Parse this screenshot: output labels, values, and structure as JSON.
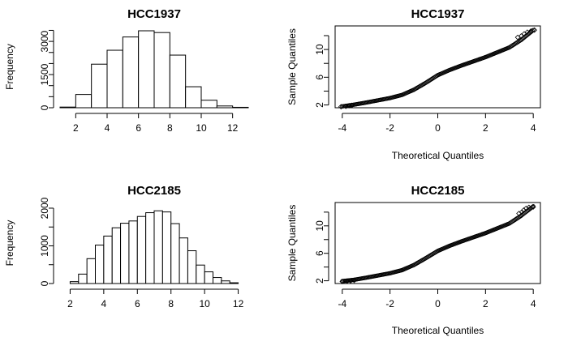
{
  "figure": {
    "background": "#ffffff",
    "ink": "#000000"
  },
  "chart_data": [
    {
      "type": "bar",
      "subtype": "histogram",
      "title": "HCC1937",
      "xlabel": "",
      "ylabel": "Frequency",
      "bin_width": 1,
      "bin_start": 1,
      "values": [
        30,
        600,
        1970,
        2600,
        3200,
        3480,
        3400,
        2380,
        950,
        340,
        80,
        20
      ],
      "xlim": [
        1,
        13
      ],
      "ylim": [
        0,
        3700
      ],
      "xticks": [
        2,
        4,
        6,
        8,
        10,
        12
      ],
      "yticks": [
        0,
        1500,
        3000
      ],
      "yminor": [
        500,
        1000,
        2000,
        2500,
        3500
      ],
      "grid": false
    },
    {
      "type": "scatter",
      "subtype": "qq",
      "title": "HCC1937",
      "xlabel": "Theoretical Quantiles",
      "ylabel": "Sample Quantiles",
      "xlim": [
        -4.3,
        4.3
      ],
      "ylim": [
        1.6,
        13.4
      ],
      "xticks": [
        -4,
        -2,
        0,
        2,
        4
      ],
      "yticks": [
        2,
        6,
        10
      ],
      "yminor": [
        4,
        8,
        12
      ],
      "curve": [
        [
          -4,
          1.8
        ],
        [
          -3.5,
          2.05
        ],
        [
          -3,
          2.35
        ],
        [
          -2,
          3.0
        ],
        [
          -1.5,
          3.45
        ],
        [
          -1,
          4.2
        ],
        [
          -0.5,
          5.2
        ],
        [
          0,
          6.3
        ],
        [
          0.5,
          7.05
        ],
        [
          1,
          7.7
        ],
        [
          2,
          8.9
        ],
        [
          3,
          10.3
        ],
        [
          3.5,
          11.4
        ],
        [
          4,
          12.8
        ]
      ],
      "tail_points": [
        [
          -4.05,
          1.75
        ],
        [
          -3.85,
          1.8
        ],
        [
          -3.7,
          1.9
        ],
        [
          -3.6,
          1.95
        ],
        [
          3.35,
          11.75
        ],
        [
          3.5,
          11.95
        ],
        [
          3.62,
          12.25
        ],
        [
          3.75,
          12.5
        ],
        [
          3.9,
          12.65
        ],
        [
          4.05,
          12.8
        ]
      ],
      "grid": false
    },
    {
      "type": "bar",
      "subtype": "histogram",
      "title": "HCC2185",
      "xlabel": "",
      "ylabel": "Frequency",
      "bin_width": 0.5,
      "bin_start": 2,
      "values": [
        50,
        250,
        660,
        1020,
        1260,
        1480,
        1600,
        1660,
        1780,
        1880,
        1930,
        1900,
        1590,
        1210,
        870,
        490,
        310,
        160,
        70,
        20
      ],
      "xlim": [
        1.4,
        12.6
      ],
      "ylim": [
        0,
        2150
      ],
      "xticks": [
        2,
        4,
        6,
        8,
        10,
        12
      ],
      "yticks": [
        0,
        1000,
        2000
      ],
      "yminor": [
        500,
        1500
      ],
      "grid": false
    },
    {
      "type": "scatter",
      "subtype": "qq",
      "title": "HCC2185",
      "xlabel": "Theoretical Quantiles",
      "ylabel": "Sample Quantiles",
      "xlim": [
        -4.3,
        4.3
      ],
      "ylim": [
        1.6,
        13.4
      ],
      "xticks": [
        -4,
        -2,
        0,
        2,
        4
      ],
      "yticks": [
        2,
        6,
        10
      ],
      "yminor": [
        4,
        8,
        12
      ],
      "curve": [
        [
          -4,
          1.95
        ],
        [
          -3.5,
          2.15
        ],
        [
          -3,
          2.45
        ],
        [
          -2,
          3.1
        ],
        [
          -1.5,
          3.55
        ],
        [
          -1,
          4.3
        ],
        [
          -0.5,
          5.3
        ],
        [
          0,
          6.35
        ],
        [
          0.5,
          7.1
        ],
        [
          1,
          7.75
        ],
        [
          2,
          8.95
        ],
        [
          3,
          10.35
        ],
        [
          3.5,
          11.5
        ],
        [
          4,
          12.85
        ]
      ],
      "tail_points": [
        [
          -4.0,
          1.9
        ],
        [
          -3.8,
          1.95
        ],
        [
          -3.65,
          2.0
        ],
        [
          -3.5,
          2.05
        ],
        [
          3.4,
          11.8
        ],
        [
          3.52,
          12.0
        ],
        [
          3.6,
          12.3
        ],
        [
          3.7,
          12.55
        ],
        [
          3.82,
          12.7
        ],
        [
          4.0,
          12.75
        ]
      ],
      "grid": false
    }
  ]
}
